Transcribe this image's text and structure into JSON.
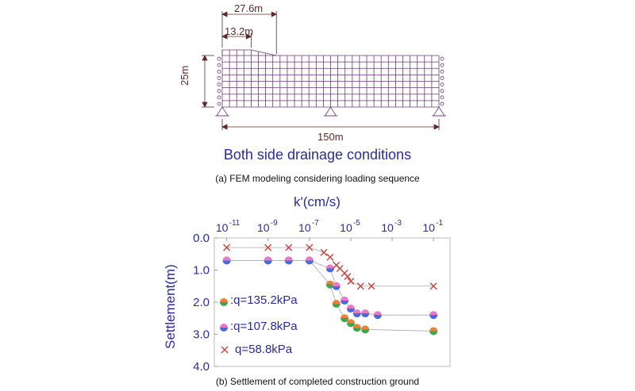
{
  "figure_a": {
    "dim_top1": "27.6m",
    "dim_top2": "13.2m",
    "dim_left": "25m",
    "dim_bottom": "150m",
    "condition_label": "Both side drainage conditions",
    "caption": "(a) FEM modeling considering loading sequence"
  },
  "figure_b": {
    "caption": "(b) Settlement of completed construction ground"
  },
  "chart_data": {
    "type": "scatter",
    "xlabel": "k'(cm/s)",
    "ylabel": "Settlement(m)",
    "x_scale": "log",
    "xlim": [
      1e-11,
      0.1
    ],
    "ylim": [
      0.0,
      4.0
    ],
    "y_inverted": true,
    "x_tick_exponents": [
      -11,
      -9,
      -7,
      -5,
      -3,
      -1
    ],
    "x_ticks": [
      "10",
      "10",
      "10",
      "10",
      "10",
      "10"
    ],
    "x_tick_sups": [
      "-11",
      "-9",
      "-7",
      "-5",
      "-3",
      "-1"
    ],
    "y_ticks": [
      0.0,
      1.0,
      2.0,
      3.0,
      4.0
    ],
    "y_tick_labels": [
      "0.0",
      "1.0",
      "2.0",
      "3.0",
      "4.0"
    ],
    "series": [
      {
        "name": ":q=135.2kPa",
        "marker": "circle-green-orange",
        "x": [
          1e-11,
          1e-09,
          1e-08,
          1e-07,
          1e-06,
          2e-06,
          5e-06,
          1e-05,
          2e-05,
          5e-05,
          0.1
        ],
        "y": [
          0.7,
          0.7,
          0.7,
          0.7,
          1.45,
          2.05,
          2.5,
          2.65,
          2.8,
          2.85,
          2.9
        ]
      },
      {
        "name": ":q=107.8kPa",
        "marker": "circle-blue-pink",
        "x": [
          1e-11,
          1e-09,
          1e-08,
          1e-07,
          1e-06,
          2e-06,
          5e-06,
          1e-05,
          2e-05,
          5e-05,
          0.0002,
          0.1
        ],
        "y": [
          0.7,
          0.7,
          0.7,
          0.7,
          0.95,
          1.5,
          1.95,
          2.2,
          2.35,
          2.35,
          2.4,
          2.4
        ]
      },
      {
        "name": "q=58.8kPa",
        "marker": "x-red",
        "x": [
          1e-11,
          1e-09,
          1e-08,
          1e-07,
          5e-07,
          1e-06,
          2e-06,
          3e-06,
          5e-06,
          7e-06,
          1e-05,
          3e-05,
          0.0001,
          0.1
        ],
        "y": [
          0.3,
          0.3,
          0.3,
          0.3,
          0.45,
          0.6,
          0.85,
          0.95,
          1.1,
          1.2,
          1.35,
          1.5,
          1.5,
          1.5
        ]
      }
    ],
    "legend_placement": "left-inside"
  },
  "colors": {
    "mesh": "#6a3a7a",
    "axis_text": "#2a2aa8",
    "x_marker": "#d04040"
  }
}
